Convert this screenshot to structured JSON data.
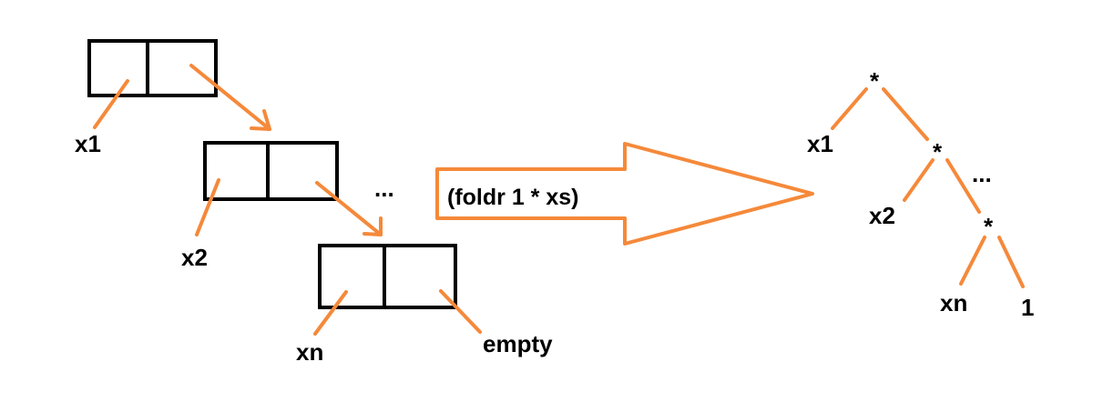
{
  "colors": {
    "accent": "#f5893a",
    "ink": "#000000",
    "background": "#ffffff"
  },
  "list": {
    "labels": [
      "x1",
      "x2",
      "xn",
      "empty"
    ],
    "ellipsis": "..."
  },
  "arrow_label": "(foldr 1 * xs)",
  "tree": {
    "op_symbol": "*",
    "leaves": [
      "x1",
      "x2",
      "xn",
      "1"
    ],
    "ellipsis": "..."
  }
}
